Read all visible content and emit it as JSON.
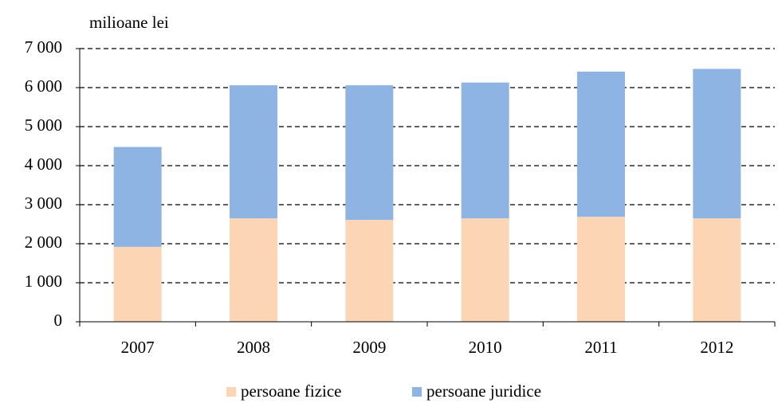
{
  "chart_data": {
    "type": "stacked_bar",
    "y_label": "milioane lei",
    "categories": [
      "2007",
      "2008",
      "2009",
      "2010",
      "2011",
      "2012"
    ],
    "series": [
      {
        "name": "persoane fizice",
        "color": "#fcd5b5",
        "values": [
          1920,
          2650,
          2610,
          2650,
          2690,
          2650
        ]
      },
      {
        "name": "persoane juridice",
        "color": "#8eb4e3",
        "values": [
          2560,
          3410,
          3450,
          3480,
          3720,
          3830
        ]
      }
    ],
    "ylim": [
      0,
      7000
    ],
    "yticks": [
      0,
      {
        "value": 1000,
        "label": "1 000"
      },
      {
        "value": 2000,
        "label": "2 000"
      },
      {
        "value": 3000,
        "label": "3 000"
      },
      {
        "value": 4000,
        "label": "4 000"
      },
      {
        "value": 5000,
        "label": "5 000"
      },
      {
        "value": 6000,
        "label": "6 000"
      },
      {
        "value": 7000,
        "label": "7 000"
      }
    ],
    "grid": true,
    "legend": "bottom"
  }
}
